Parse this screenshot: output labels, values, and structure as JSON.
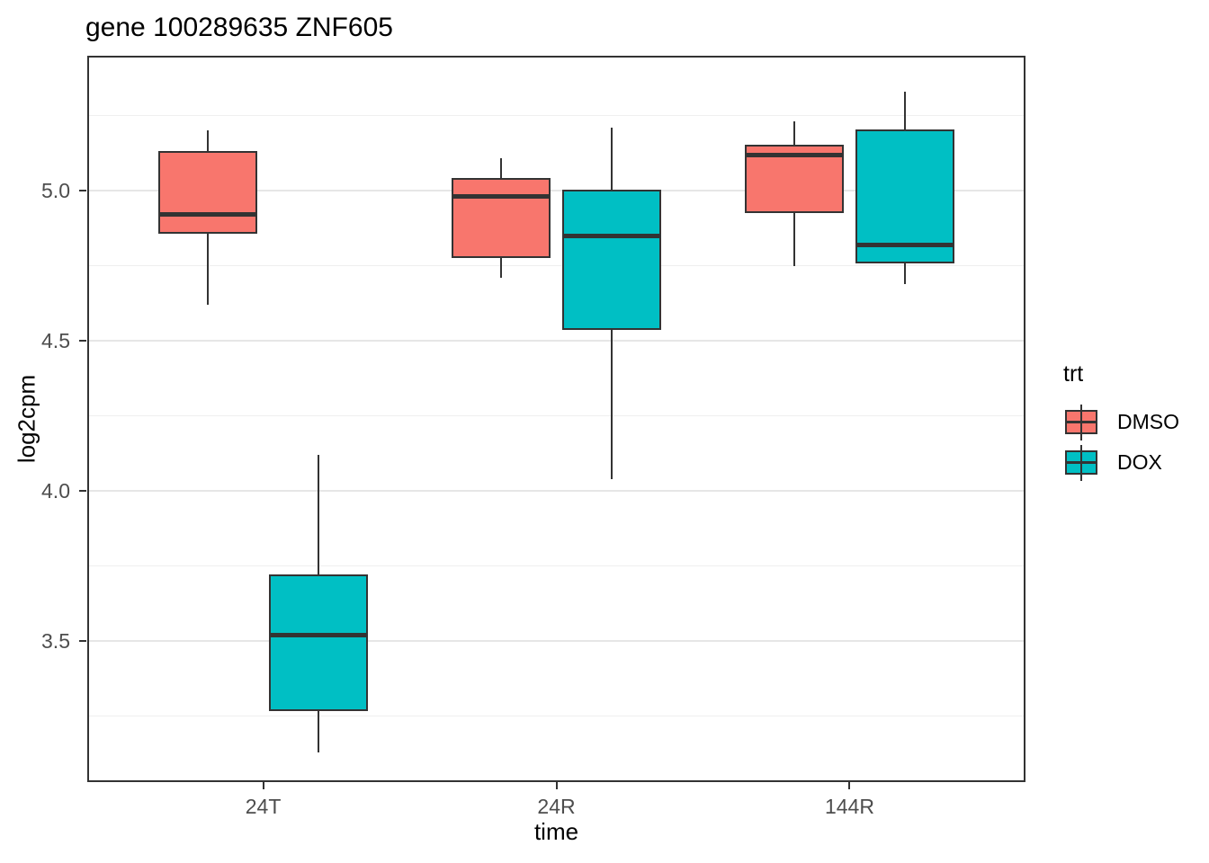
{
  "title": "gene 100289635 ZNF605",
  "colors": {
    "dmso_fill": "#F8766D",
    "dox_fill": "#00BFC4",
    "box_border": "#333333",
    "median": "#333333",
    "grid_major": "#E6E6E6",
    "grid_minor": "#EFEFEF",
    "axis_text": "#4D4D4D",
    "panel_border": "#333333"
  },
  "chart_data": {
    "type": "boxplot",
    "title": "gene 100289635 ZNF605",
    "xlabel": "time",
    "ylabel": "log2cpm",
    "categories": [
      "24T",
      "24R",
      "144R"
    ],
    "y_axis": {
      "range": [
        3.03,
        5.45
      ],
      "major_ticks": [
        3.5,
        4.0,
        4.5,
        5.0
      ],
      "major_tick_labels": [
        "3.5",
        "4.0",
        "4.5",
        "5.0"
      ],
      "minor_gridlines": [
        3.25,
        3.75,
        4.25,
        4.75,
        5.25
      ],
      "grid": true
    },
    "legend": {
      "title": "trt",
      "position": "right",
      "entries": [
        {
          "label": "DMSO",
          "color": "#F8766D"
        },
        {
          "label": "DOX",
          "color": "#00BFC4"
        }
      ]
    },
    "series": [
      {
        "name": "DMSO",
        "color": "#F8766D",
        "boxes": [
          {
            "category": "24T",
            "whisker_low": 4.62,
            "q1": 4.86,
            "median": 4.92,
            "q3": 5.13,
            "whisker_high": 5.2
          },
          {
            "category": "24R",
            "whisker_low": 4.71,
            "q1": 4.78,
            "median": 4.98,
            "q3": 5.04,
            "whisker_high": 5.11
          },
          {
            "category": "144R",
            "whisker_low": 4.75,
            "q1": 4.93,
            "median": 5.12,
            "q3": 5.15,
            "whisker_high": 5.23
          }
        ]
      },
      {
        "name": "DOX",
        "color": "#00BFC4",
        "boxes": [
          {
            "category": "24T",
            "whisker_low": 3.13,
            "q1": 3.27,
            "median": 3.52,
            "q3": 3.72,
            "whisker_high": 4.12
          },
          {
            "category": "24R",
            "whisker_low": 4.04,
            "q1": 4.54,
            "median": 4.85,
            "q3": 5.0,
            "whisker_high": 5.21
          },
          {
            "category": "144R",
            "whisker_low": 4.69,
            "q1": 4.76,
            "median": 4.82,
            "q3": 5.2,
            "whisker_high": 5.33
          }
        ]
      }
    ]
  }
}
